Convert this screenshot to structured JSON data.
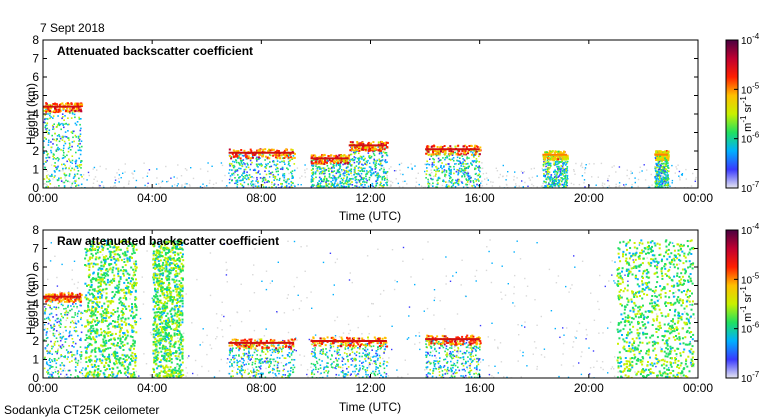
{
  "header": {
    "date": "7 Sept 2018"
  },
  "footer": {
    "instrument": "Sodankyla CT25K ceilometer"
  },
  "colorbar": {
    "unit_main": "m",
    "unit_sup1": "-1",
    "unit_mid": " sr",
    "unit_sup2": "-1",
    "scale": "log",
    "ticks": [
      {
        "base": "10",
        "exp": "-4"
      },
      {
        "base": "10",
        "exp": "-5"
      },
      {
        "base": "10",
        "exp": "-6"
      },
      {
        "base": "10",
        "exp": "-7"
      }
    ],
    "colors": [
      "#e6e6f0",
      "#3a3aff",
      "#00b0ff",
      "#20e060",
      "#c8f000",
      "#ffc000",
      "#ff2000",
      "#c00030",
      "#4a0040"
    ]
  },
  "chart_data": [
    {
      "type": "heatmap",
      "title": "Attenuated backscatter coefficient",
      "xlabel": "Time (UTC)",
      "ylabel": "Height (km)",
      "x_tick_labels": [
        "00:00",
        "04:00",
        "08:00",
        "12:00",
        "16:00",
        "20:00",
        "00:00"
      ],
      "y_tick_labels": [
        "0",
        "1",
        "2",
        "3",
        "4",
        "5",
        "6",
        "7",
        "8"
      ],
      "xlim_hours": [
        0,
        24
      ],
      "ylim_km": [
        0,
        8
      ],
      "features": [
        {
          "desc": "elevated layer",
          "t_start_h": 0.0,
          "t_end_h": 1.4,
          "height_km": 4.4,
          "level": "high"
        },
        {
          "desc": "cloud base",
          "t_start_h": 6.8,
          "t_end_h": 9.2,
          "height_km": 1.9,
          "level": "high"
        },
        {
          "desc": "cloud base",
          "t_start_h": 9.8,
          "t_end_h": 11.2,
          "height_km": 1.6,
          "level": "high"
        },
        {
          "desc": "cloud base",
          "t_start_h": 11.2,
          "t_end_h": 12.6,
          "height_km": 2.3,
          "level": "high"
        },
        {
          "desc": "cloud base",
          "t_start_h": 14.0,
          "t_end_h": 16.0,
          "height_km": 2.1,
          "level": "high"
        },
        {
          "desc": "cloud base",
          "t_start_h": 18.3,
          "t_end_h": 19.2,
          "height_km": 1.8,
          "level": "mid"
        },
        {
          "desc": "cloud base",
          "t_start_h": 22.4,
          "t_end_h": 22.9,
          "height_km": 1.8,
          "level": "mid"
        }
      ]
    },
    {
      "type": "heatmap",
      "title": "Raw attenuated backscatter coefficient",
      "xlabel": "Time (UTC)",
      "ylabel": "Height (km)",
      "x_tick_labels": [
        "00:00",
        "04:00",
        "08:00",
        "12:00",
        "16:00",
        "20:00",
        "00:00"
      ],
      "y_tick_labels": [
        "0",
        "1",
        "2",
        "3",
        "4",
        "5",
        "6",
        "7",
        "8"
      ],
      "xlim_hours": [
        0,
        24
      ],
      "ylim_km": [
        0,
        8
      ],
      "features": [
        {
          "desc": "elevated layer",
          "t_start_h": 0.0,
          "t_end_h": 1.4,
          "height_km": 4.4,
          "level": "high"
        },
        {
          "desc": "precipitation column",
          "t_start_h": 1.5,
          "t_end_h": 3.4,
          "height_km": 7.5,
          "level": "mid"
        },
        {
          "desc": "precipitation column",
          "t_start_h": 4.0,
          "t_end_h": 5.1,
          "height_km": 7.5,
          "level": "mid"
        },
        {
          "desc": "cloud base",
          "t_start_h": 6.8,
          "t_end_h": 9.2,
          "height_km": 1.9,
          "level": "high"
        },
        {
          "desc": "cloud base",
          "t_start_h": 9.8,
          "t_end_h": 12.6,
          "height_km": 2.0,
          "level": "high"
        },
        {
          "desc": "cloud base",
          "t_start_h": 14.0,
          "t_end_h": 16.0,
          "height_km": 2.1,
          "level": "high"
        },
        {
          "desc": "precipitation column",
          "t_start_h": 21.0,
          "t_end_h": 23.8,
          "height_km": 7.5,
          "level": "mid"
        }
      ]
    }
  ]
}
